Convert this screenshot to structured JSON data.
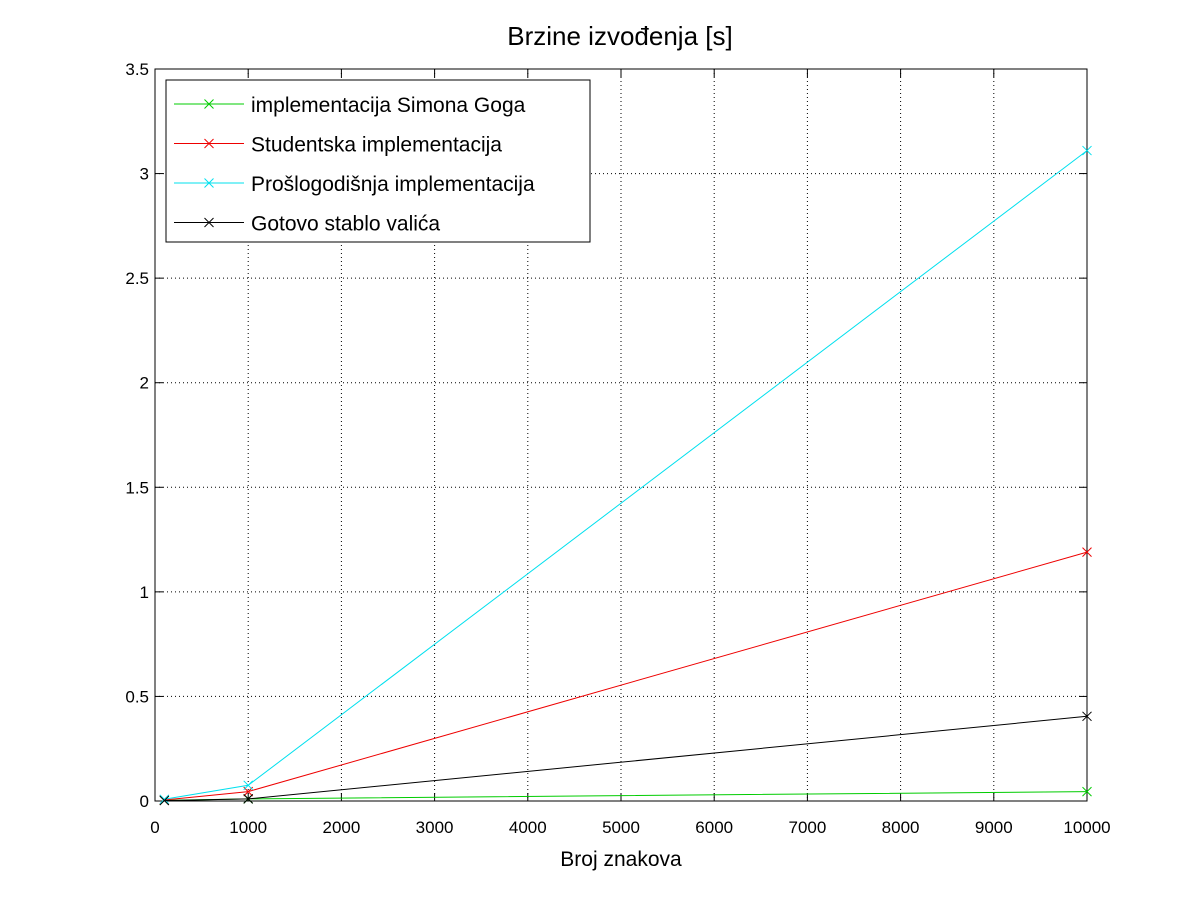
{
  "chart_data": {
    "type": "line",
    "title": "Brzine izvođenja [s]",
    "xlabel": "Broj znakova",
    "ylabel": "",
    "xlim": [
      0,
      10000
    ],
    "ylim": [
      0,
      3.5
    ],
    "x_ticks": [
      "0",
      "1000",
      "2000",
      "3000",
      "4000",
      "5000",
      "6000",
      "7000",
      "8000",
      "9000",
      "10000"
    ],
    "y_ticks": [
      "0",
      "0.5",
      "1",
      "1.5",
      "2",
      "2.5",
      "3",
      "3.5"
    ],
    "grid": true,
    "legend_position": "top-left",
    "x": [
      100,
      1000,
      10000
    ],
    "series": [
      {
        "name": "implementacija Simona Goga",
        "color": "#00cc00",
        "values": [
          0.003,
          0.01,
          0.045
        ]
      },
      {
        "name": "Studentska implementacija",
        "color": "#ee0000",
        "values": [
          0.005,
          0.045,
          1.19
        ]
      },
      {
        "name": "Prošlogodišnja implementacija",
        "color": "#00e0ee",
        "values": [
          0.008,
          0.075,
          3.11
        ]
      },
      {
        "name": "Gotovo stablo valića",
        "color": "#000000",
        "values": [
          0.002,
          0.01,
          0.405
        ]
      }
    ]
  }
}
